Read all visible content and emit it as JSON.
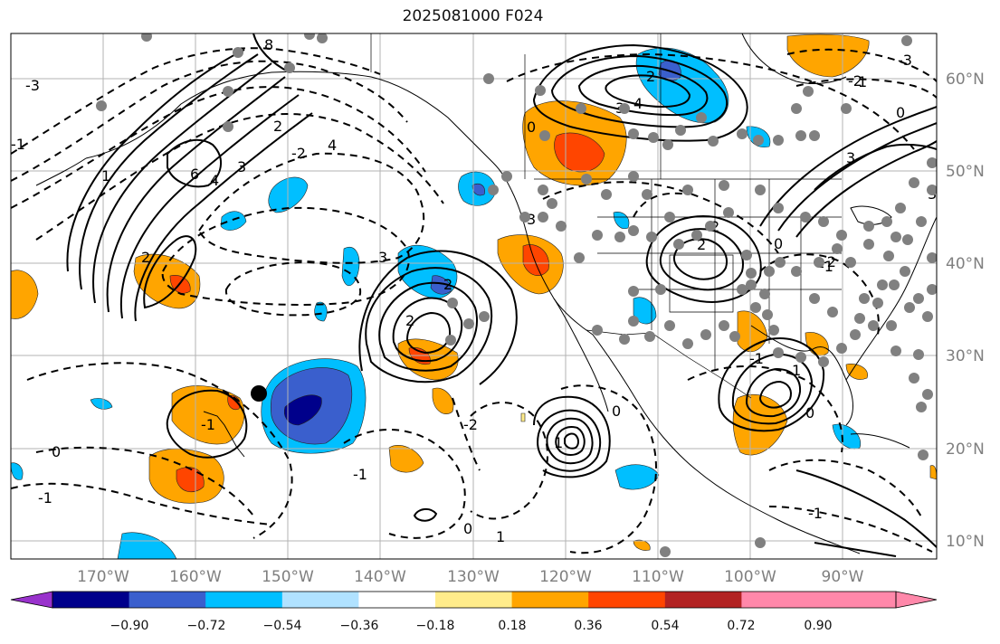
{
  "title": "2025081000 F024",
  "latitude_labels": [
    "60°N",
    "50°N",
    "40°N",
    "30°N",
    "20°N",
    "10°N"
  ],
  "longitude_labels": [
    "170°W",
    "160°W",
    "150°W",
    "140°W",
    "130°W",
    "120°W",
    "110°W",
    "100°W",
    "90°W"
  ],
  "colorbar": {
    "colors": [
      "#9932cc",
      "#00008b",
      "#3a5fcd",
      "#00bfff",
      "#b0e2ff",
      "#ffffff",
      "#ffec8b",
      "#ffa500",
      "#ff4500",
      "#b22222",
      "#ff88aa"
    ],
    "tick_labels": [
      "−0.90",
      "−0.72",
      "−0.54",
      "−0.36",
      "−0.18",
      "0.18",
      "0.36",
      "0.54",
      "0.72",
      "0.90"
    ]
  },
  "contour_labels": [
    "8",
    "6",
    "4",
    "3",
    "2",
    "1",
    "0",
    "-1",
    "-2",
    "-3",
    "4",
    "3",
    "2",
    "2",
    "2",
    "3",
    "1",
    "0",
    "-2",
    "1",
    "0",
    "-1",
    "-1",
    "2",
    "3",
    "0",
    "-1",
    "-2",
    "-3",
    "4",
    "3",
    "2",
    "3",
    "-1",
    "0",
    "1",
    "2",
    "-1",
    "0",
    "1",
    "-2",
    "0",
    "-1"
  ]
}
